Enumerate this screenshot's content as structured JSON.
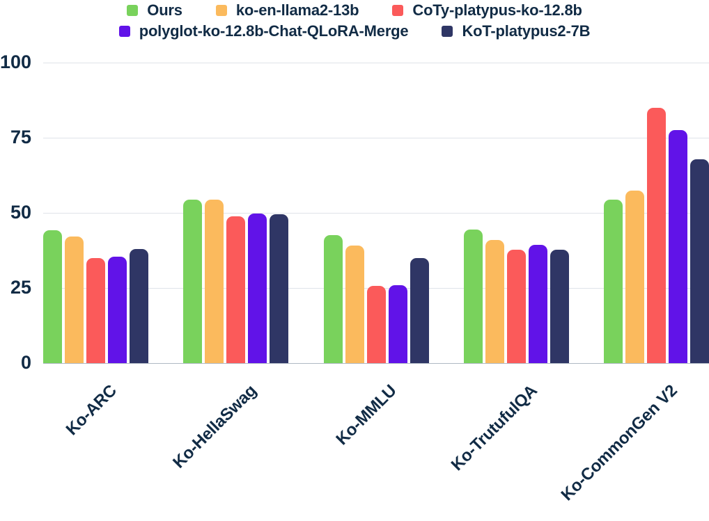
{
  "chart_data": {
    "type": "bar",
    "title": "",
    "xlabel": "",
    "ylabel": "",
    "categories": [
      "Ko-ARC",
      "Ko-HellaSwag",
      "Ko-MMLU",
      "Ko-TrutufulQA",
      "Ko-CommonGen V2"
    ],
    "series": [
      {
        "name": "Ours",
        "color": "#79D25C",
        "values": [
          44.2,
          54.4,
          42.5,
          44.4,
          54.3
        ]
      },
      {
        "name": "ko-en-llama2-13b",
        "color": "#FBBA5D",
        "values": [
          42.1,
          54.3,
          39.2,
          40.9,
          57.3
        ]
      },
      {
        "name": "CoTy-platypus-ko-12.8b",
        "color": "#FB5A5A",
        "values": [
          35.0,
          48.9,
          25.8,
          37.8,
          84.9
        ]
      },
      {
        "name": "polyglot-ko-12.8b-Chat-QLoRA-Merge",
        "color": "#6113E8",
        "values": [
          35.5,
          49.8,
          25.9,
          39.4,
          77.6
        ]
      },
      {
        "name": "KoT-platypus2-7B",
        "color": "#2F3665",
        "values": [
          38.0,
          49.5,
          34.9,
          37.7,
          67.9
        ]
      }
    ],
    "ylim": [
      0,
      100
    ],
    "yticks": [
      0,
      25,
      50,
      75,
      100
    ],
    "grid": "horizontal",
    "legend_position": "top",
    "legend_rows": [
      [
        0,
        1,
        2
      ],
      [
        3,
        4
      ]
    ]
  },
  "style": {
    "text_color": "#112B45",
    "grid_color": "#DFE3E9",
    "baseline_color": "#AFB9C3",
    "background": "#FFFFFF"
  }
}
